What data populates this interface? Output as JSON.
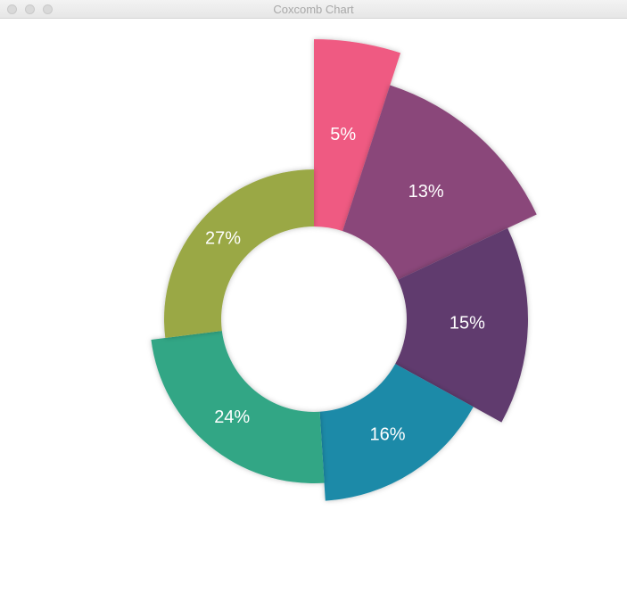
{
  "window_title": "Coxcomb Chart",
  "chart_data": {
    "type": "coxcomb",
    "values": [
      5,
      13,
      15,
      16,
      24,
      27
    ],
    "value_labels": [
      "5%",
      "13%",
      "15%",
      "16%",
      "24%",
      "27%"
    ],
    "colors": [
      "#ef5a82",
      "#8a477a",
      "#613a6e",
      "#1a8aa8",
      "#30a685",
      "#9aa845"
    ]
  }
}
